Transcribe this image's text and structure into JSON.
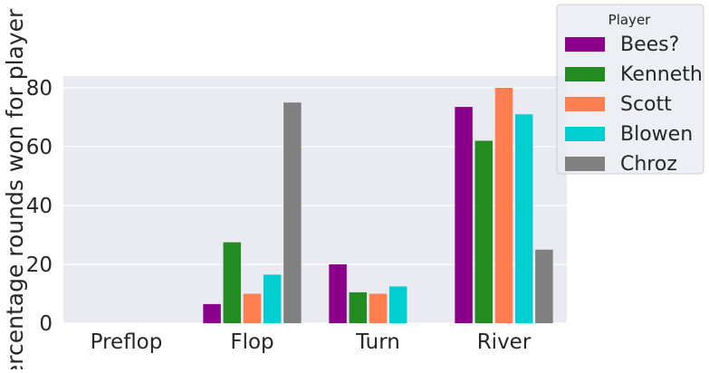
{
  "chart_data": {
    "type": "bar",
    "title": "",
    "xlabel": "",
    "ylabel": "Percentage rounds won for player",
    "categories": [
      "Preflop",
      "Flop",
      "Turn",
      "River"
    ],
    "ylim": [
      0,
      84
    ],
    "yticks": [
      0,
      20,
      40,
      60,
      80
    ],
    "grid": true,
    "legend_title": "Player",
    "legend_position": "top-right, outside plot",
    "series": [
      {
        "name": "Bees?",
        "color": "#8b008b",
        "values": [
          0,
          6.5,
          20,
          73.5
        ]
      },
      {
        "name": "Kenneth",
        "color": "#228b22",
        "values": [
          0,
          27.5,
          10.5,
          62
        ]
      },
      {
        "name": "Scott",
        "color": "#ff7f50",
        "values": [
          0,
          10,
          10,
          80
        ]
      },
      {
        "name": "Blowen",
        "color": "#00ced1",
        "values": [
          0,
          16.5,
          12.5,
          71
        ]
      },
      {
        "name": "Chroz",
        "color": "#808080",
        "values": [
          0,
          75,
          0,
          25
        ]
      }
    ],
    "colors": {
      "plot_background": "#eaeaf2",
      "grid": "#ffffff"
    }
  }
}
